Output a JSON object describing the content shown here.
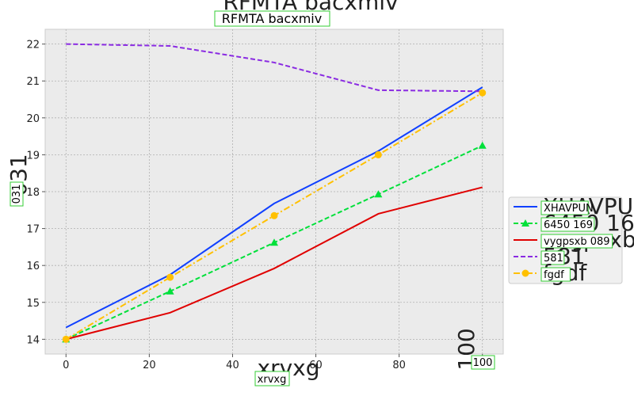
{
  "chart_data": {
    "type": "line",
    "title": "RFMTA bacxmiv",
    "xlabel": "xrvxg",
    "ylabel": "031",
    "xlim": [
      -5,
      105
    ],
    "ylim": [
      13.6,
      22.4
    ],
    "x": [
      0,
      25,
      50,
      75,
      100
    ],
    "xticks": [
      0,
      20,
      40,
      60,
      80,
      100
    ],
    "yticks": [
      14,
      15,
      16,
      17,
      18,
      19,
      20,
      21,
      22
    ],
    "x_corner_label": "100",
    "grid": true,
    "background": "#ebebeb",
    "legend": {
      "placement": "right",
      "entries": [
        "XHAVPUN",
        "6450 169",
        "vygpsxb 089",
        "581",
        "fgdf"
      ]
    },
    "series": [
      {
        "name": "XHAVPUN",
        "values": [
          14.32,
          15.75,
          17.68,
          19.1,
          20.83
        ],
        "color": "#1040ff",
        "style": "solid",
        "marker": "none"
      },
      {
        "name": "6450 169",
        "values": [
          14.0,
          15.3,
          16.62,
          17.93,
          19.25
        ],
        "color": "#00e03a",
        "style": "dashed",
        "marker": "triangle"
      },
      {
        "name": "vygpsxb 089",
        "values": [
          14.0,
          14.72,
          15.92,
          17.4,
          18.12
        ],
        "color": "#e00000",
        "style": "solid",
        "marker": "none"
      },
      {
        "name": "581",
        "values": [
          22.0,
          21.95,
          21.5,
          20.75,
          20.72
        ],
        "color": "#8a2be2",
        "style": "dashed",
        "marker": "none"
      },
      {
        "name": "fgdf",
        "values": [
          14.0,
          15.68,
          17.35,
          19.0,
          20.68
        ],
        "color": "#ffc000",
        "style": "dashdot",
        "marker": "circle"
      }
    ]
  }
}
